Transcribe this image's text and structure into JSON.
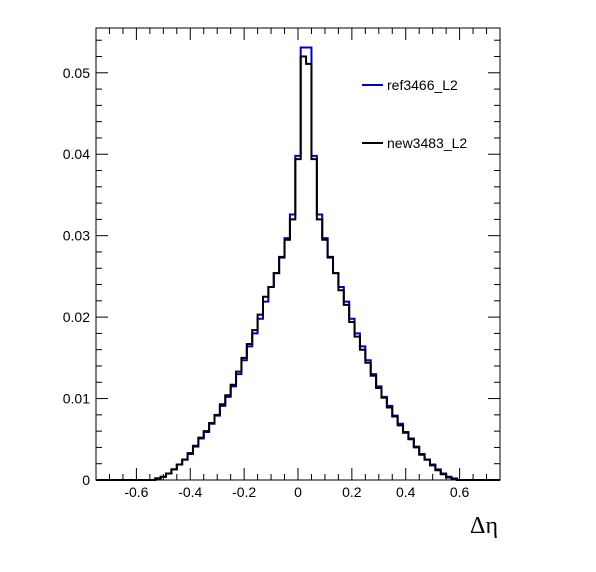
{
  "chart_data": {
    "type": "line",
    "xlabel": "Δη",
    "ylabel": "",
    "xlim": [
      -0.75,
      0.75
    ],
    "ylim": [
      0,
      0.0555
    ],
    "x_ticks": [
      -0.6,
      -0.4,
      -0.2,
      0,
      0.2,
      0.4,
      0.6
    ],
    "x_tick_labels": [
      "-0.6",
      "-0.4",
      "-0.2",
      "0",
      "0.2",
      "0.4",
      "0.6"
    ],
    "y_ticks": [
      0,
      0.01,
      0.02,
      0.03,
      0.04,
      0.05
    ],
    "y_tick_labels": [
      "0",
      "0.01",
      "0.02",
      "0.03",
      "0.04",
      "0.05"
    ],
    "grid": false,
    "legend_position": "top-right",
    "bin_edges_range": [
      -0.75,
      0.75
    ],
    "bin_count": 75,
    "series": [
      {
        "name": "ref3466_L2",
        "color": "#0000cc",
        "values": [
          0,
          0,
          0,
          0,
          0,
          0,
          0,
          0,
          0,
          0,
          0,
          0.0002,
          0.0004,
          0.0008,
          0.0013,
          0.0019,
          0.0025,
          0.0032,
          0.0041,
          0.0051,
          0.0059,
          0.0069,
          0.0079,
          0.0091,
          0.0102,
          0.0115,
          0.013,
          0.0147,
          0.0164,
          0.018,
          0.0198,
          0.0219,
          0.0237,
          0.0254,
          0.0273,
          0.0297,
          0.0326,
          0.0398,
          0.0531,
          0.0531,
          0.0398,
          0.0326,
          0.0297,
          0.0273,
          0.0254,
          0.0237,
          0.0219,
          0.0198,
          0.018,
          0.0164,
          0.0147,
          0.013,
          0.0115,
          0.0102,
          0.0091,
          0.0079,
          0.0069,
          0.0059,
          0.0051,
          0.0041,
          0.0032,
          0.0025,
          0.0019,
          0.0013,
          0.0008,
          0.0004,
          0.0002,
          0,
          0,
          0,
          0,
          0,
          0,
          0,
          0
        ]
      },
      {
        "name": "new3483_L2",
        "color": "#000000",
        "values": [
          0,
          0,
          0,
          0,
          0,
          0,
          0,
          0,
          0,
          0,
          0,
          0.0002,
          0.0004,
          0.0008,
          0.0013,
          0.0019,
          0.0025,
          0.0033,
          0.0042,
          0.0052,
          0.006,
          0.007,
          0.008,
          0.0093,
          0.0104,
          0.0117,
          0.0133,
          0.015,
          0.0167,
          0.0184,
          0.0203,
          0.0225,
          0.0237,
          0.0254,
          0.0274,
          0.0295,
          0.032,
          0.0394,
          0.052,
          0.0511,
          0.0394,
          0.032,
          0.0295,
          0.0274,
          0.0254,
          0.0233,
          0.0215,
          0.0194,
          0.0176,
          0.016,
          0.0144,
          0.0128,
          0.0113,
          0.0101,
          0.0089,
          0.0078,
          0.0067,
          0.0058,
          0.005,
          0.004,
          0.0031,
          0.0025,
          0.0018,
          0.0012,
          0.0007,
          0.0003,
          0.0001,
          0,
          0,
          0,
          0,
          0,
          0,
          0,
          0
        ]
      }
    ]
  }
}
